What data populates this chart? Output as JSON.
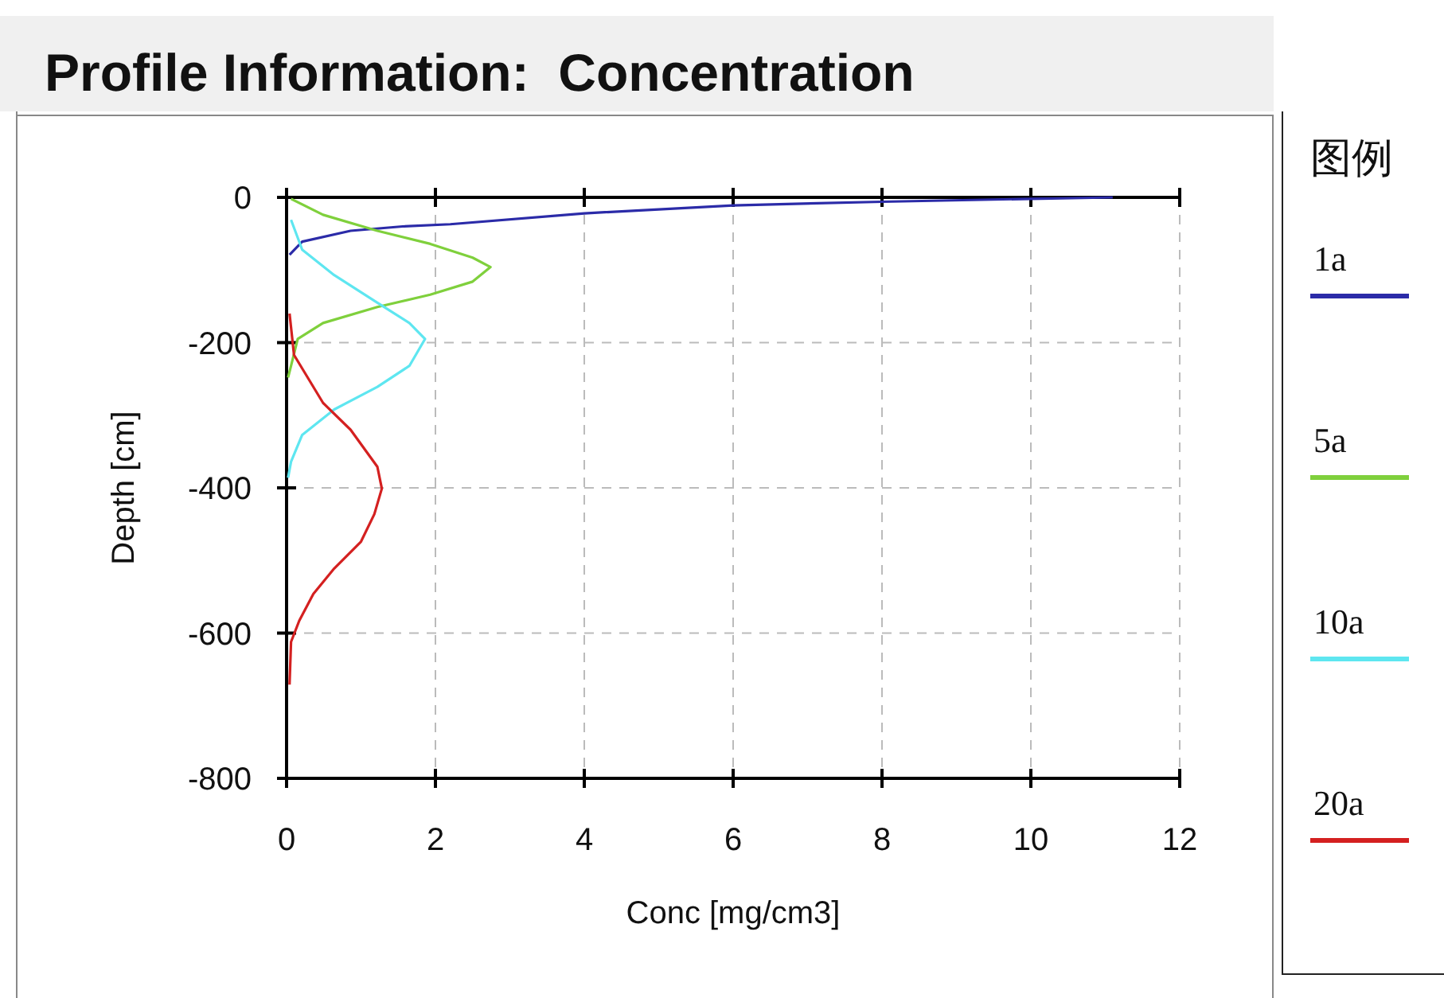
{
  "chart_data": {
    "type": "line",
    "title": "Profile Information:  Concentration",
    "xlabel": "Conc [mg/cm3]",
    "ylabel": "Depth [cm]",
    "legend_title": "图例",
    "xlim": [
      0,
      12
    ],
    "ylim": [
      -800,
      0
    ],
    "xticks": [
      0,
      2,
      4,
      6,
      8,
      10,
      12
    ],
    "yticks": [
      -800,
      -600,
      -400,
      -200,
      0
    ],
    "grid": true,
    "legend": "right",
    "series": [
      {
        "name": "1a",
        "color": "#2b2ba8",
        "x": [
          11.1,
          10,
          8,
          6,
          4,
          2.2,
          1.56,
          0.86,
          0.21,
          0.04
        ],
        "values": [
          0,
          -2,
          -6,
          -11,
          -22,
          -37,
          -40,
          -46,
          -61,
          -79
        ]
      },
      {
        "name": "5a",
        "color": "#7fd03c",
        "x": [
          0.06,
          0.49,
          1.22,
          1.93,
          2.5,
          2.74,
          2.5,
          1.93,
          1.22,
          0.49,
          0.15,
          0.06,
          0.02
        ],
        "values": [
          -2,
          -24,
          -46,
          -64,
          -83,
          -96,
          -116,
          -134,
          -151,
          -173,
          -195,
          -232,
          -248
        ]
      },
      {
        "name": "10a",
        "color": "#5ee6f0",
        "x": [
          0.06,
          0.21,
          0.64,
          1.22,
          1.65,
          1.86,
          1.65,
          1.22,
          0.64,
          0.21,
          0.06,
          0.02
        ],
        "values": [
          -31,
          -72,
          -107,
          -145,
          -173,
          -195,
          -232,
          -261,
          -292,
          -327,
          -364,
          -386
        ]
      },
      {
        "name": "20a",
        "color": "#d42020",
        "x": [
          0.04,
          0.1,
          0.49,
          0.86,
          1.22,
          1.28,
          1.18,
          1.0,
          0.64,
          0.36,
          0.17,
          0.06,
          0.04
        ],
        "values": [
          -160,
          -217,
          -283,
          -320,
          -371,
          -401,
          -436,
          -474,
          -511,
          -546,
          -583,
          -612,
          -671
        ]
      }
    ]
  }
}
